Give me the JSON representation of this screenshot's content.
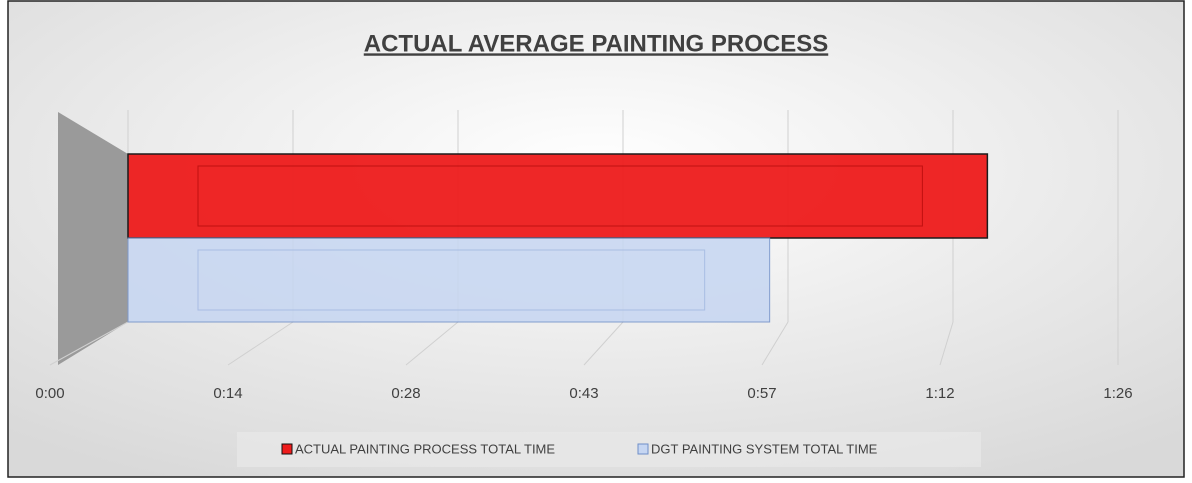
{
  "chart_data": {
    "type": "bar",
    "orientation": "horizontal",
    "title": "ACTUAL AVERAGE PAINTING PROCESS",
    "categories": [
      null
    ],
    "series": [
      {
        "name": "ACTUAL PAINTING PROCESS TOTAL TIME",
        "color": "#ee1c1c",
        "values": [
          75
        ]
      },
      {
        "name": "DGT PAINTING SYSTEM TOTAL TIME",
        "color": "#c6d6f2",
        "values": [
          56
        ]
      }
    ],
    "xlim": [
      0,
      86.4
    ],
    "xticks": [
      {
        "value": 0,
        "label": "0:00"
      },
      {
        "value": 14.4,
        "label": "0:14"
      },
      {
        "value": 28.8,
        "label": "0:28"
      },
      {
        "value": 43.2,
        "label": "0:43"
      },
      {
        "value": 57.6,
        "label": "0:57"
      },
      {
        "value": 72,
        "label": "1:12"
      },
      {
        "value": 86.4,
        "label": "1:26"
      }
    ],
    "grid": true,
    "legend": "bottom"
  }
}
